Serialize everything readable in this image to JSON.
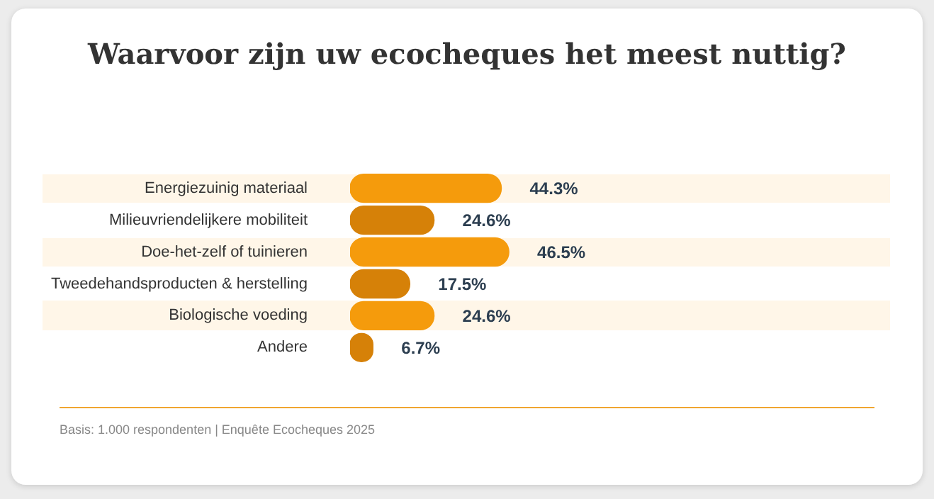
{
  "chart_data": {
    "type": "bar",
    "orientation": "horizontal",
    "title": "Waarvoor zijn uw ecocheques het meest nuttig?",
    "categories": [
      "Energiezuinig materiaal",
      "Milieuvriendelijkere mobiliteit",
      "Doe-het-zelf of tuinieren",
      "Tweedehandsproducten & herstelling",
      "Biologische voeding",
      "Andere"
    ],
    "values": [
      44.3,
      24.6,
      46.5,
      17.5,
      24.6,
      6.7
    ],
    "value_labels": [
      "44.3%",
      "24.6%",
      "46.5%",
      "17.5%",
      "24.6%",
      "6.7%"
    ],
    "colors": [
      "#f59b0c",
      "#d68108",
      "#f59b0c",
      "#d68108",
      "#f59b0c",
      "#d68108"
    ],
    "annotations": [
      "Basis: 1.000 respondenten  |  Enquête Ecocheques 2025"
    ]
  }
}
